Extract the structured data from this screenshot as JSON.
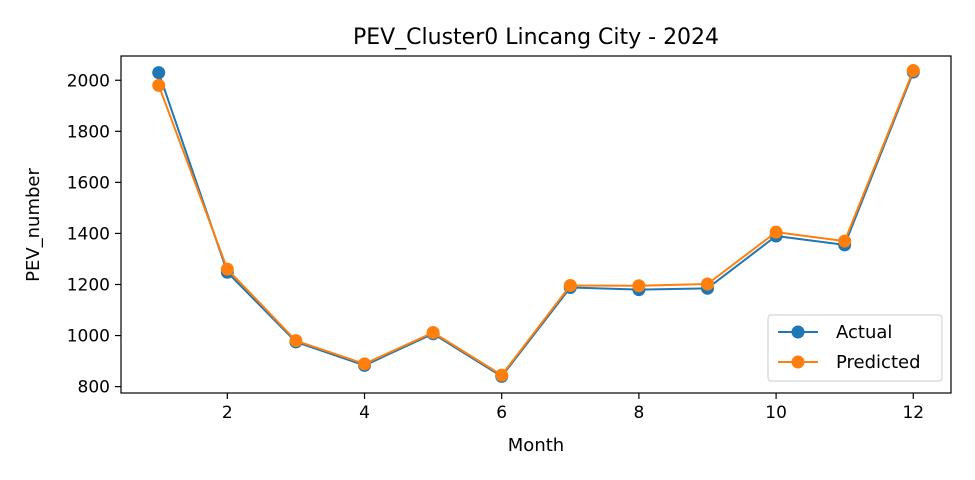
{
  "chart_data": {
    "type": "line",
    "title": "PEV_Cluster0 Lincang City - 2024",
    "xlabel": "Month",
    "ylabel": "PEV_number",
    "x": [
      1,
      2,
      3,
      4,
      5,
      6,
      7,
      8,
      9,
      10,
      11,
      12
    ],
    "xlim": [
      0.45,
      12.55
    ],
    "ylim": [
      775,
      2095
    ],
    "xticks": [
      2,
      4,
      6,
      8,
      10,
      12
    ],
    "yticks": [
      800,
      1000,
      1200,
      1400,
      1600,
      1800,
      2000
    ],
    "grid": false,
    "legend_position": "lower right",
    "series": [
      {
        "name": "Actual",
        "color": "#1f77b4",
        "values": [
          2030,
          1248,
          975,
          883,
          1007,
          840,
          1188,
          1180,
          1185,
          1390,
          1355,
          2032
        ]
      },
      {
        "name": "Predicted",
        "color": "#ff7f0e",
        "values": [
          1980,
          1260,
          980,
          889,
          1012,
          845,
          1196,
          1195,
          1202,
          1405,
          1370,
          2038
        ]
      }
    ]
  }
}
